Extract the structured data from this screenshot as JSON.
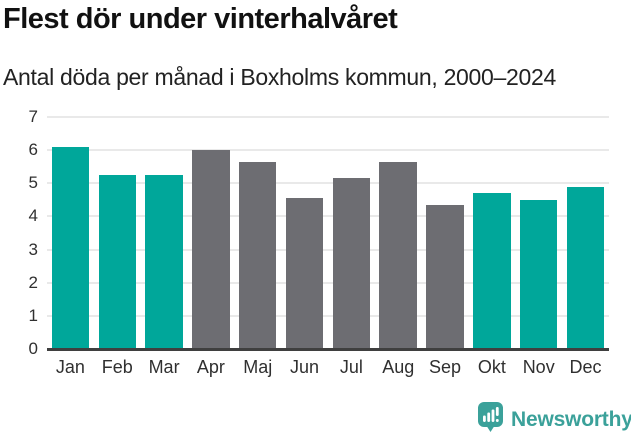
{
  "header": {
    "title": "Flest dör under vinterhalvåret",
    "subtitle": "Antal döda per månad i Boxholms kommun, 2000–2024"
  },
  "chart_data": {
    "type": "bar",
    "title": "Flest dör under vinterhalvåret",
    "subtitle": "Antal döda per månad i Boxholms kommun, 2000–2024",
    "categories": [
      "Jan",
      "Feb",
      "Mar",
      "Apr",
      "Maj",
      "Jun",
      "Jul",
      "Aug",
      "Sep",
      "Okt",
      "Nov",
      "Dec"
    ],
    "values": [
      6.1,
      5.25,
      5.25,
      6.0,
      5.65,
      4.55,
      5.15,
      5.65,
      4.35,
      4.7,
      4.5,
      4.9
    ],
    "highlighted": [
      true,
      true,
      true,
      false,
      false,
      false,
      false,
      false,
      false,
      true,
      true,
      true
    ],
    "xlabel": "",
    "ylabel": "",
    "ylim": [
      0,
      7
    ],
    "yticks": [
      0,
      1,
      2,
      3,
      4,
      5,
      6,
      7
    ],
    "grid": true,
    "legend": false,
    "colors": {
      "highlight": "#00a79a",
      "default": "#6d6d72",
      "gridline": "#e9e9e9",
      "axis_line": "#3f3f3f"
    }
  },
  "footer": {
    "brand": "Newsworthy",
    "brand_color": "#3ba19a",
    "logo_icon": "bar-chart-speech-bubble-icon"
  }
}
